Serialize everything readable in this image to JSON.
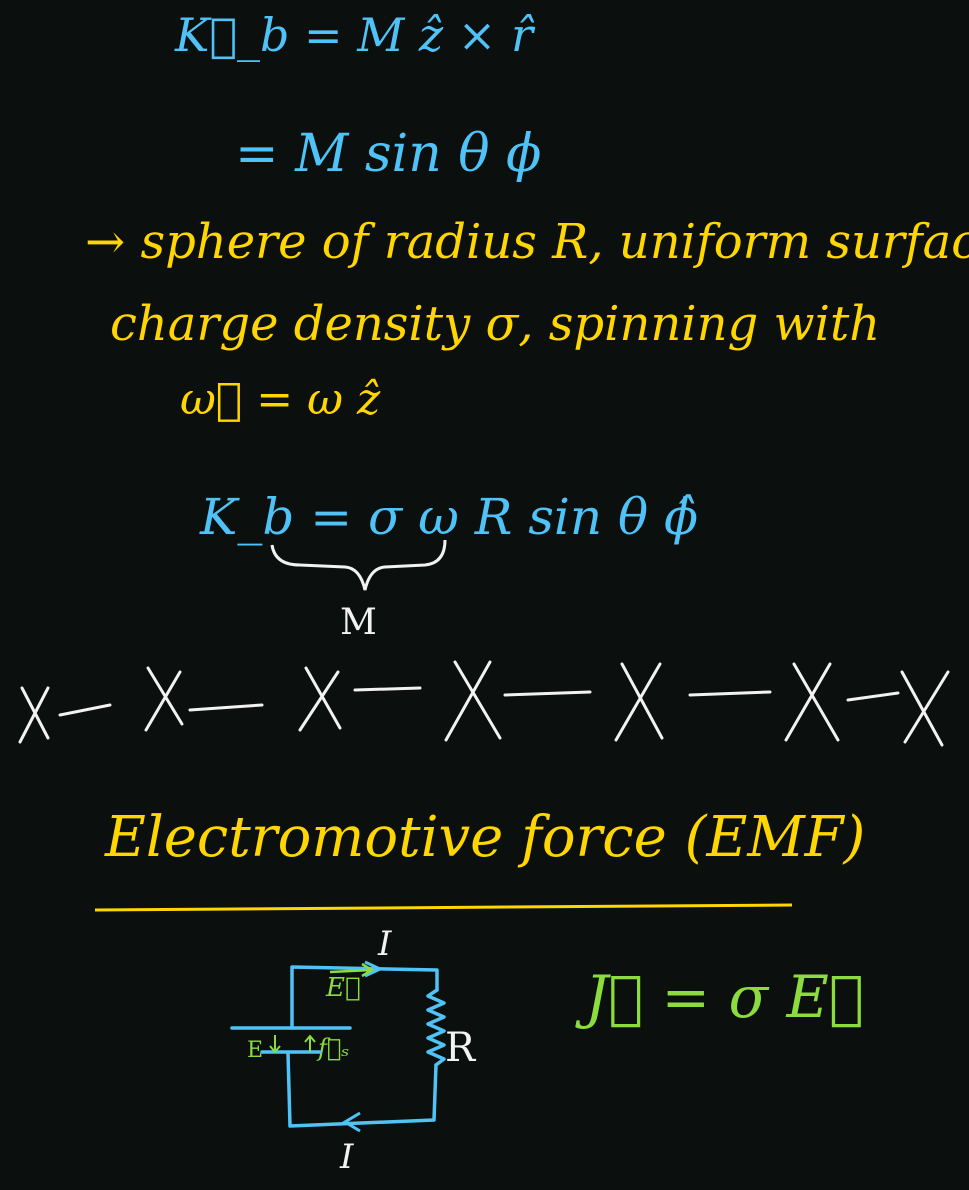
{
  "notes": {
    "line1": "K⃗_b = M ẑ × r̂",
    "line2": "= M sin θ ϕ",
    "line3": "→ sphere of radius R, uniform surface",
    "line4": "charge density σ, spinning with",
    "line5": "ω⃗ = ω ẑ",
    "line6": "K_b = σ ω R sin θ ϕ̂",
    "line7": "M"
  },
  "section": {
    "title": "Electromotive force (EMF)"
  },
  "circuit": {
    "current_top": "I",
    "current_bottom": "I",
    "resistor_label": "R",
    "battery_label": "E",
    "field_label": "E⃗",
    "source_force_label": "f⃗ₛ"
  },
  "ohm_law": "J⃗ = σ E⃗",
  "colors": {
    "background": "#0b0f0d",
    "blue": "#4fc3f7",
    "yellow": "#ffd600",
    "white": "#f2f2f2",
    "green": "#8bdc3c"
  }
}
